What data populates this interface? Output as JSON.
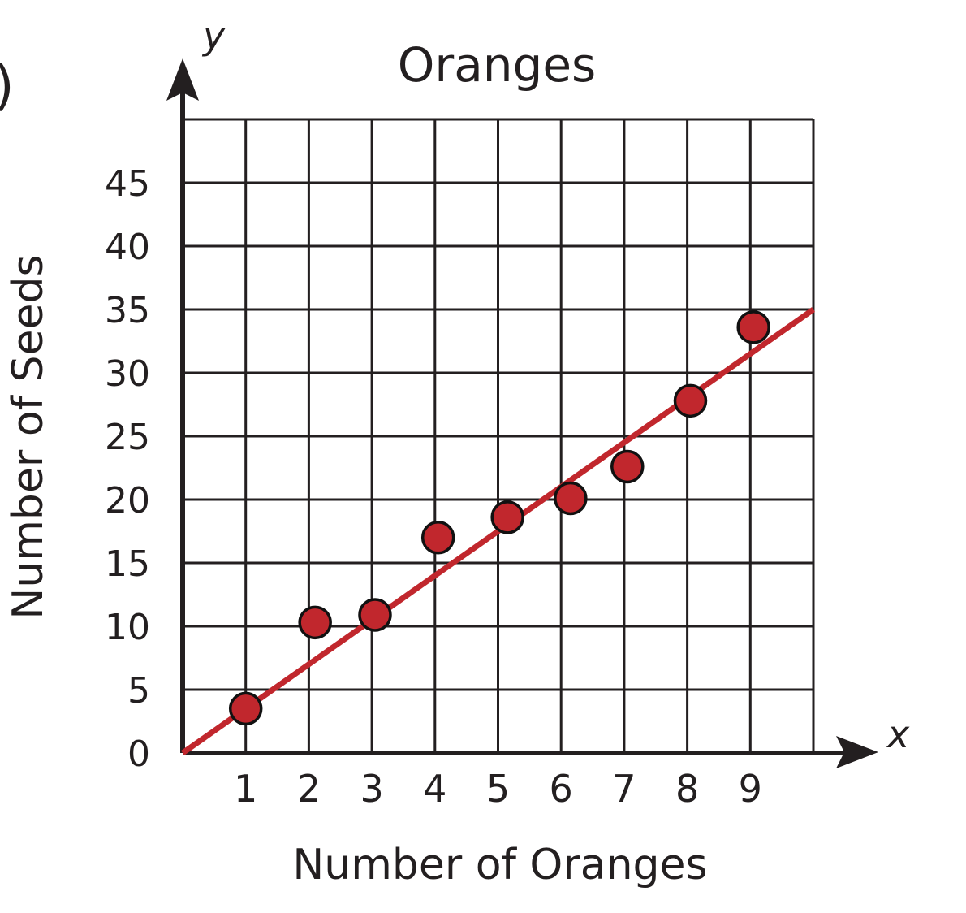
{
  "page": {
    "corner_mark": ")"
  },
  "chart_data": {
    "type": "scatter",
    "title": "Oranges",
    "xlabel": "Number of Oranges",
    "ylabel": "Number of Seeds",
    "x_axis_letter": "x",
    "y_axis_letter": "y",
    "xlim": [
      0,
      10
    ],
    "ylim": [
      0,
      50
    ],
    "x_ticks": [
      "1",
      "2",
      "3",
      "4",
      "5",
      "6",
      "7",
      "8",
      "9"
    ],
    "y_ticks": [
      "0",
      "5",
      "10",
      "15",
      "20",
      "25",
      "30",
      "35",
      "40",
      "45"
    ],
    "grid": true,
    "points": [
      {
        "x": 1,
        "y": 3.5
      },
      {
        "x": 2.1,
        "y": 10.3
      },
      {
        "x": 3.05,
        "y": 10.9
      },
      {
        "x": 4.05,
        "y": 17
      },
      {
        "x": 5.15,
        "y": 18.6
      },
      {
        "x": 6.15,
        "y": 20.1
      },
      {
        "x": 7.05,
        "y": 22.6
      },
      {
        "x": 8.05,
        "y": 27.8
      },
      {
        "x": 9.05,
        "y": 33.6
      }
    ],
    "trend_line": {
      "x": [
        0,
        10
      ],
      "y": [
        0,
        35
      ]
    },
    "colors": {
      "points": "#c1272d",
      "trend_line": "#c1272d",
      "grid": "#231f20",
      "text": "#231f20"
    }
  }
}
